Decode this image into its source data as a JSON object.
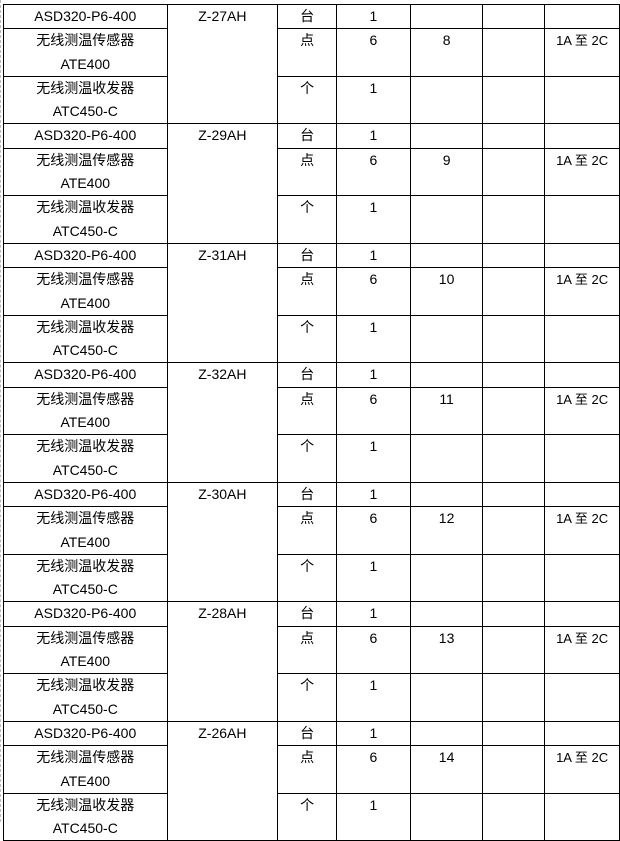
{
  "groups": [
    {
      "model": "Z-27AH",
      "unit_no": "8"
    },
    {
      "model": "Z-29AH",
      "unit_no": "9"
    },
    {
      "model": "Z-31AH",
      "unit_no": "10"
    },
    {
      "model": "Z-32AH",
      "unit_no": "11"
    },
    {
      "model": "Z-30AH",
      "unit_no": "12"
    },
    {
      "model": "Z-28AH",
      "unit_no": "13"
    },
    {
      "model": "Z-26AH",
      "unit_no": "14"
    }
  ],
  "rows": {
    "device": {
      "name": "ASD320-P6-400",
      "unit": "台",
      "qty": "1"
    },
    "sensor": {
      "name_line1": "无线测温传感器",
      "name_line2": "ATE400",
      "unit": "点",
      "qty": "6",
      "range": "1A 至 2C"
    },
    "transceiver": {
      "name_line1": "无线测温收发器",
      "name_line2": "ATC450-C",
      "unit": "个",
      "qty": "1"
    }
  }
}
